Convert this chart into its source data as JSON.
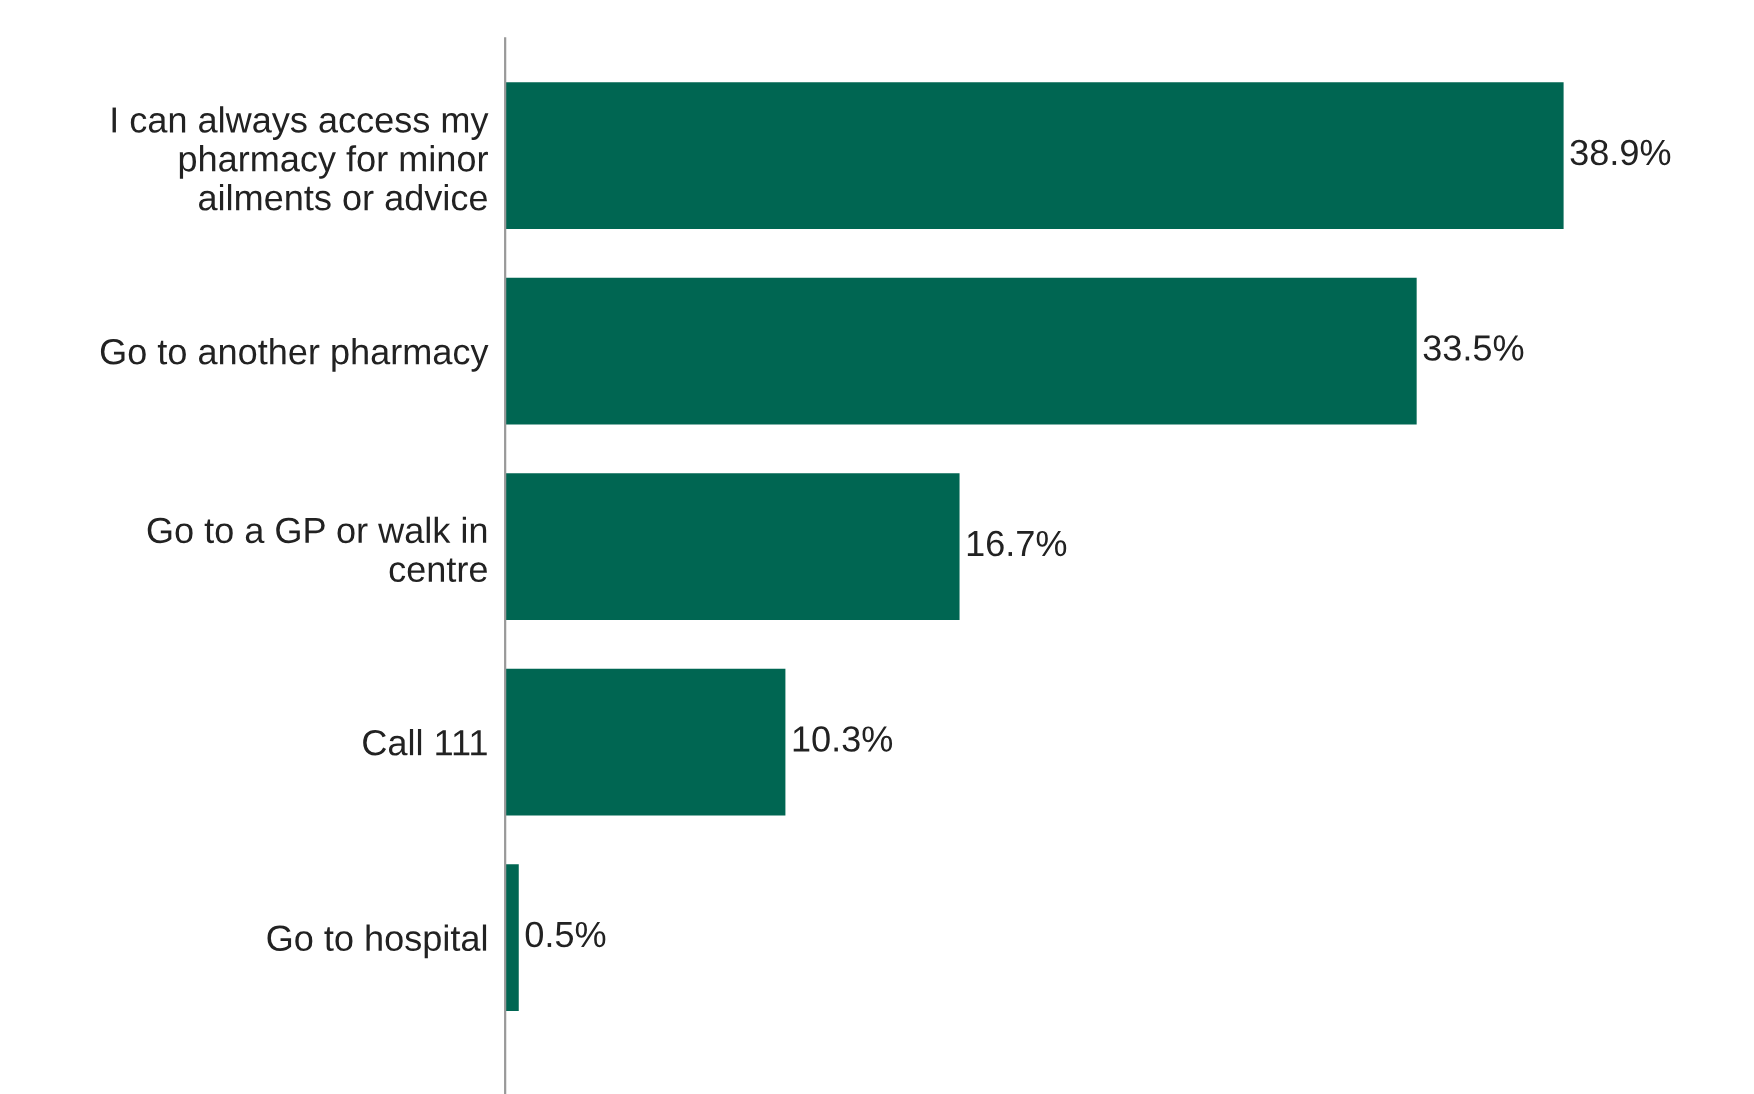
{
  "chart_data": {
    "type": "bar",
    "orientation": "horizontal",
    "categories": [
      "I can always access my pharmacy for minor ailments or advice",
      "Go to another pharmacy",
      "Go to a GP or walk in centre",
      "Call 111",
      "Go to hospital"
    ],
    "values": [
      38.9,
      33.5,
      16.7,
      10.3,
      0.5
    ],
    "value_labels": [
      "38.9%",
      "33.5%",
      "16.7%",
      "10.3%",
      "0.5%"
    ],
    "color": "#006652",
    "tick_labels": "y",
    "grid": false,
    "legend": false
  }
}
